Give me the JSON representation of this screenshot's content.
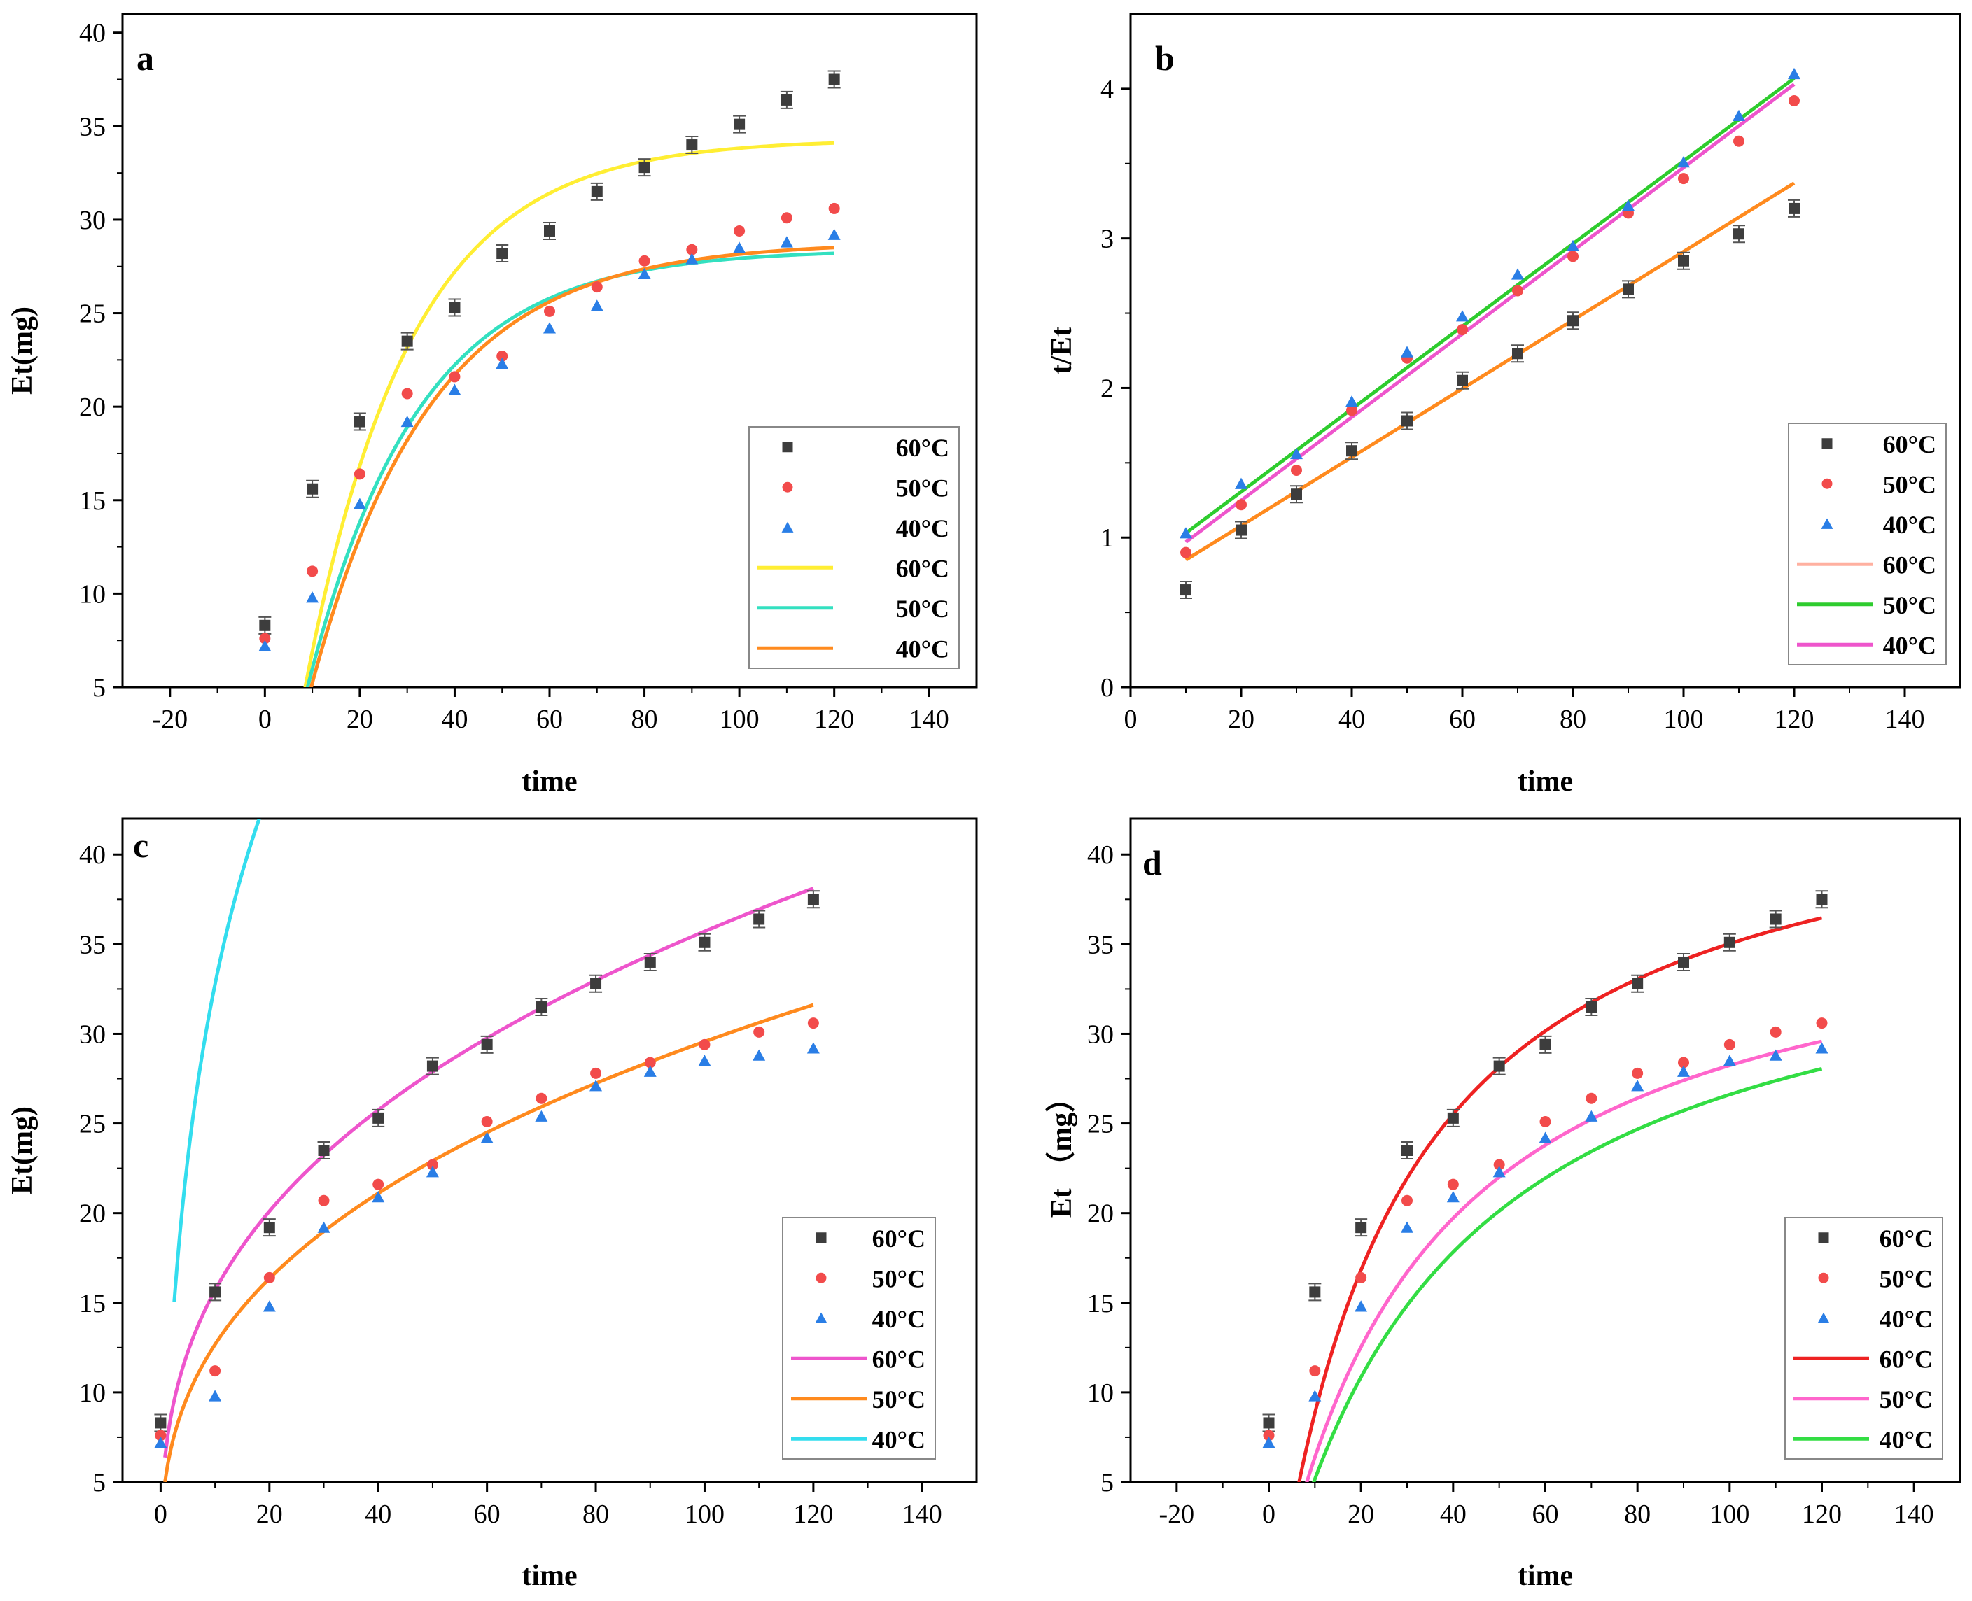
{
  "legend_series": [
    "60°C",
    "50°C",
    "40°C"
  ],
  "colors": {
    "marker_60": "#3d3d3d",
    "marker_50": "#f24b4b",
    "marker_40": "#2a7ee6"
  },
  "chart_data": [
    {
      "id": "a",
      "type": "scatter",
      "label": "a",
      "xlabel": "time",
      "ylabel": "Et(mg)",
      "xlim": [
        -30,
        150
      ],
      "ylim": [
        5,
        41
      ],
      "xticks": [
        -20,
        0,
        20,
        40,
        60,
        80,
        100,
        120,
        140
      ],
      "yticks": [
        5,
        10,
        15,
        20,
        25,
        30,
        35,
        40
      ],
      "legend_position": "bottom-right",
      "marker_series": [
        {
          "name": "60°C",
          "marker": "square",
          "color": "#3d3d3d",
          "x": [
            0,
            10,
            20,
            30,
            40,
            50,
            60,
            70,
            80,
            90,
            100,
            110,
            120
          ],
          "y": [
            8.3,
            15.6,
            19.2,
            23.5,
            25.3,
            28.2,
            29.4,
            31.5,
            32.8,
            34.0,
            35.1,
            36.4,
            37.5
          ]
        },
        {
          "name": "50°C",
          "marker": "circle",
          "color": "#f24b4b",
          "x": [
            0,
            10,
            20,
            30,
            40,
            50,
            60,
            70,
            80,
            90,
            100,
            110,
            120
          ],
          "y": [
            7.6,
            11.2,
            16.4,
            20.7,
            21.6,
            22.7,
            25.1,
            26.4,
            27.8,
            28.4,
            29.4,
            30.1,
            30.6
          ]
        },
        {
          "name": "40°C",
          "marker": "triangle",
          "color": "#2a7ee6",
          "x": [
            0,
            10,
            20,
            30,
            40,
            50,
            60,
            70,
            80,
            90,
            100,
            110,
            120
          ],
          "y": [
            7.2,
            9.8,
            14.8,
            19.2,
            20.9,
            22.3,
            24.2,
            25.4,
            27.1,
            27.9,
            28.5,
            28.8,
            29.2
          ]
        }
      ],
      "fit_series": [
        {
          "name": "60°C",
          "color": "#ffee33",
          "model": "pfo",
          "qe": 34.3,
          "k": 0.045,
          "t0": 5,
          "x_end": 120
        },
        {
          "name": "50°C",
          "color": "#33e0c0",
          "model": "pfo",
          "qe": 28.4,
          "k": 0.043,
          "t0": 4.5,
          "x_end": 120
        },
        {
          "name": "40°C",
          "color": "#ff8a1e",
          "model": "pfo",
          "qe": 28.8,
          "k": 0.04,
          "t0": 5,
          "x_end": 120
        }
      ]
    },
    {
      "id": "b",
      "type": "scatter",
      "label": "b",
      "xlabel": "time",
      "ylabel": "t/Et",
      "xlim": [
        0,
        150
      ],
      "ylim": [
        0,
        4.5
      ],
      "xticks": [
        0,
        20,
        40,
        60,
        80,
        100,
        120,
        140
      ],
      "yticks": [
        0,
        1,
        2,
        3,
        4
      ],
      "legend_position": "bottom-right",
      "marker_series": [
        {
          "name": "60°C",
          "marker": "square",
          "color": "#3d3d3d",
          "x": [
            10,
            20,
            30,
            40,
            50,
            60,
            70,
            80,
            90,
            100,
            110,
            120
          ],
          "y": [
            0.65,
            1.05,
            1.29,
            1.58,
            1.78,
            2.05,
            2.23,
            2.45,
            2.66,
            2.85,
            3.03,
            3.2
          ]
        },
        {
          "name": "50°C",
          "marker": "circle",
          "color": "#f24b4b",
          "x": [
            10,
            20,
            30,
            40,
            50,
            60,
            70,
            80,
            90,
            100,
            110,
            120
          ],
          "y": [
            0.9,
            1.22,
            1.45,
            1.85,
            2.2,
            2.39,
            2.65,
            2.88,
            3.17,
            3.4,
            3.65,
            3.92
          ]
        },
        {
          "name": "40°C",
          "marker": "triangle",
          "color": "#2a7ee6",
          "x": [
            10,
            20,
            30,
            40,
            50,
            60,
            70,
            80,
            90,
            100,
            110,
            120
          ],
          "y": [
            1.03,
            1.36,
            1.56,
            1.91,
            2.24,
            2.48,
            2.76,
            2.95,
            3.22,
            3.51,
            3.82,
            4.1
          ]
        }
      ],
      "fit_series": [
        {
          "name": "60°C",
          "color": "#ff8a1e",
          "model": "line",
          "x": [
            10,
            120
          ],
          "y": [
            0.85,
            3.37
          ]
        },
        {
          "name": "50°C",
          "color": "#2ecc2e",
          "model": "line",
          "x": [
            10,
            120
          ],
          "y": [
            1.03,
            4.07
          ]
        },
        {
          "name": "40°C",
          "color": "#ee55cc",
          "model": "line",
          "x": [
            10,
            120
          ],
          "y": [
            0.97,
            4.03
          ]
        }
      ],
      "legend_fit_colors": [
        "#ffb0a0",
        "#2ecc2e",
        "#ee55cc"
      ]
    },
    {
      "id": "c",
      "type": "scatter",
      "label": "c",
      "xlabel": "time",
      "ylabel": "Et(mg)",
      "xlim": [
        -7,
        150
      ],
      "ylim": [
        5,
        42
      ],
      "xticks": [
        0,
        20,
        40,
        60,
        80,
        100,
        120,
        140
      ],
      "yticks": [
        5,
        10,
        15,
        20,
        25,
        30,
        35,
        40
      ],
      "legend_position": "bottom-right",
      "marker_series": [
        {
          "name": "60°C",
          "marker": "square",
          "color": "#3d3d3d",
          "x": [
            0,
            10,
            20,
            30,
            40,
            50,
            60,
            70,
            80,
            90,
            100,
            110,
            120
          ],
          "y": [
            8.3,
            15.6,
            19.2,
            23.5,
            25.3,
            28.2,
            29.4,
            31.5,
            32.8,
            34.0,
            35.1,
            36.4,
            37.5
          ]
        },
        {
          "name": "50°C",
          "marker": "circle",
          "color": "#f24b4b",
          "x": [
            0,
            10,
            20,
            30,
            40,
            50,
            60,
            70,
            80,
            90,
            100,
            110,
            120
          ],
          "y": [
            7.6,
            11.2,
            16.4,
            20.7,
            21.6,
            22.7,
            25.1,
            26.4,
            27.8,
            28.4,
            29.4,
            30.1,
            30.6
          ]
        },
        {
          "name": "40°C",
          "marker": "triangle",
          "color": "#2a7ee6",
          "x": [
            0,
            10,
            20,
            30,
            40,
            50,
            60,
            70,
            80,
            90,
            100,
            110,
            120
          ],
          "y": [
            7.2,
            9.8,
            14.8,
            19.2,
            20.9,
            22.3,
            24.2,
            25.4,
            27.1,
            27.9,
            28.5,
            28.8,
            29.2
          ]
        }
      ],
      "fit_series": [
        {
          "name": "60°C",
          "color": "#ee55cc",
          "model": "power",
          "a": 6.9,
          "b": 0.357,
          "x_start": 0.8,
          "x_end": 120
        },
        {
          "name": "50°C",
          "color": "#ff8a1e",
          "model": "power",
          "a": 5.43,
          "b": 0.368,
          "x_start": 0.8,
          "x_end": 120
        },
        {
          "name": "40°C",
          "color": "#33ddee",
          "model": "elovich",
          "a": 9.5,
          "b": 0.0565,
          "x_start": 2.5,
          "x_end": 120
        }
      ]
    },
    {
      "id": "d",
      "type": "scatter",
      "label": "d",
      "xlabel": "time",
      "ylabel": "Et （mg）",
      "xlim": [
        -30,
        150
      ],
      "ylim": [
        5,
        42
      ],
      "xticks": [
        -20,
        0,
        20,
        40,
        60,
        80,
        100,
        120,
        140
      ],
      "yticks": [
        5,
        10,
        15,
        20,
        25,
        30,
        35,
        40
      ],
      "legend_position": "bottom-right",
      "marker_series": [
        {
          "name": "60°C",
          "marker": "square",
          "color": "#3d3d3d",
          "x": [
            0,
            10,
            20,
            30,
            40,
            50,
            60,
            70,
            80,
            90,
            100,
            110,
            120
          ],
          "y": [
            8.3,
            15.6,
            19.2,
            23.5,
            25.3,
            28.2,
            29.4,
            31.5,
            32.8,
            34.0,
            35.1,
            36.4,
            37.5
          ]
        },
        {
          "name": "50°C",
          "marker": "circle",
          "color": "#f24b4b",
          "x": [
            0,
            10,
            20,
            30,
            40,
            50,
            60,
            70,
            80,
            90,
            100,
            110,
            120
          ],
          "y": [
            7.6,
            11.2,
            16.4,
            20.7,
            21.6,
            22.7,
            25.1,
            26.4,
            27.8,
            28.4,
            29.4,
            30.1,
            30.6
          ]
        },
        {
          "name": "40°C",
          "marker": "triangle",
          "color": "#2a7ee6",
          "x": [
            0,
            10,
            20,
            30,
            40,
            50,
            60,
            70,
            80,
            90,
            100,
            110,
            120
          ],
          "y": [
            7.2,
            9.8,
            14.8,
            19.2,
            20.9,
            22.3,
            24.2,
            25.4,
            27.1,
            27.9,
            28.5,
            28.8,
            29.2
          ]
        }
      ],
      "fit_series": [
        {
          "name": "60°C",
          "color": "#ee2222",
          "model": "pso",
          "qe": 45.5,
          "k": 0.000758,
          "t0": 3,
          "x_end": 120
        },
        {
          "name": "50°C",
          "color": "#ff66cc",
          "model": "pso",
          "qe": 38.5,
          "k": 0.000737,
          "t0": 3,
          "x_end": 120
        },
        {
          "name": "40°C",
          "color": "#33dd44",
          "model": "pso",
          "qe": 38.0,
          "k": 0.000637,
          "t0": 3.5,
          "x_end": 120
        }
      ]
    }
  ]
}
